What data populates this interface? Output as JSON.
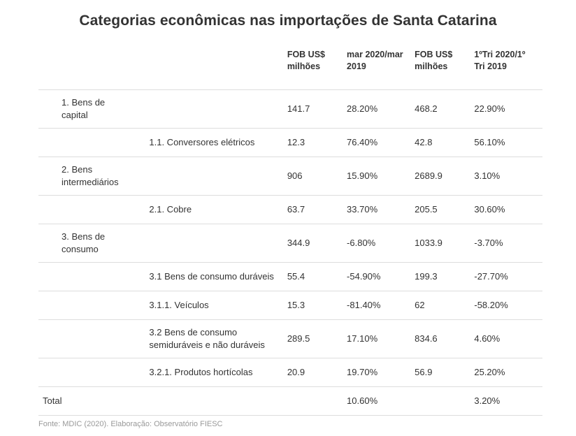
{
  "title": "Categorias econômicas nas importações de Santa Catarina",
  "headers": [
    "",
    "",
    "FOB US$ milhões",
    "mar 2020/mar 2019",
    "FOB US$ milhões",
    "1ºTri 2020/1º Tri 2019"
  ],
  "rows": [
    [
      "1. Bens de capital",
      "",
      "141.7",
      "28.20%",
      "468.2",
      "22.90%"
    ],
    [
      "",
      "1.1. Conversores elétricos",
      "12.3",
      "76.40%",
      "42.8",
      "56.10%"
    ],
    [
      "2. Bens intermediários",
      "",
      "906",
      "15.90%",
      "2689.9",
      "3.10%"
    ],
    [
      "",
      "2.1. Cobre",
      "63.7",
      "33.70%",
      "205.5",
      "30.60%"
    ],
    [
      "3. Bens de consumo",
      "",
      "344.9",
      "-6.80%",
      "1033.9",
      "-3.70%"
    ],
    [
      "",
      "3.1 Bens de consumo duráveis",
      "55.4",
      "-54.90%",
      "199.3",
      "-27.70%"
    ],
    [
      "",
      "3.1.1. Veículos",
      "15.3",
      "-81.40%",
      "62",
      "-58.20%"
    ],
    [
      "",
      "3.2 Bens de consumo semiduráveis e não duráveis",
      "289.5",
      "17.10%",
      "834.6",
      "4.60%"
    ],
    [
      "",
      "3.2.1. Produtos hortícolas",
      "20.9",
      "19.70%",
      "56.9",
      "25.20%"
    ],
    [
      "Total",
      "",
      "",
      "10.60%",
      "",
      "3.20%"
    ]
  ],
  "source": "Fonte: MDIC (2020). Elaboração: Observatório FIESC"
}
